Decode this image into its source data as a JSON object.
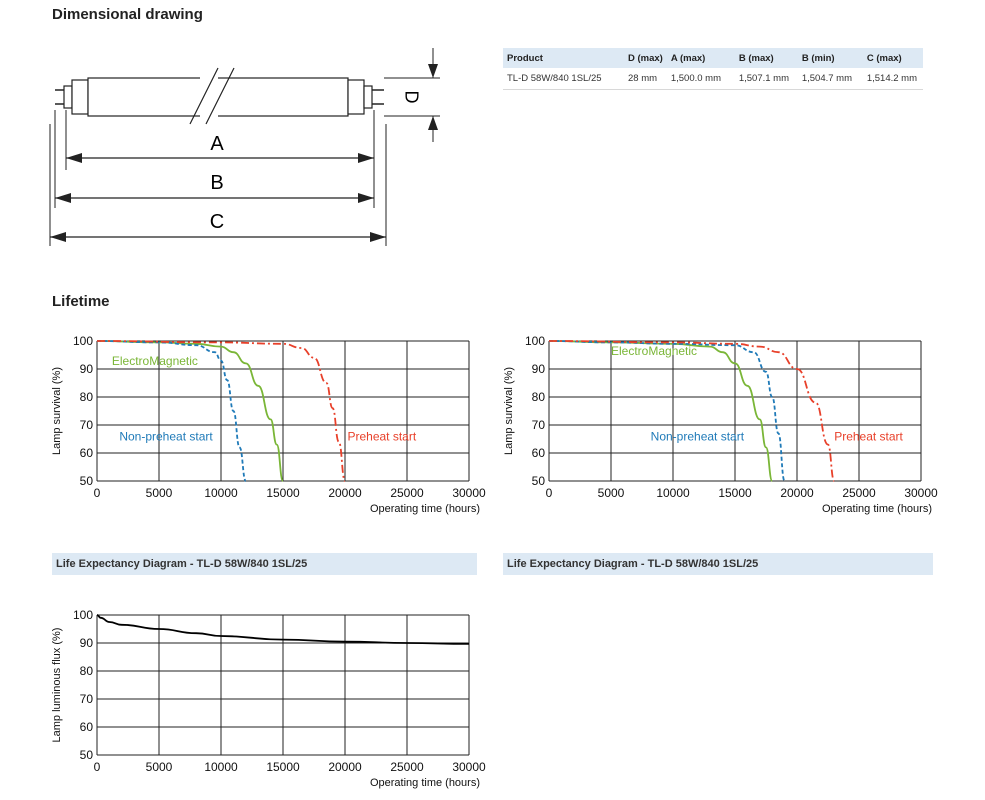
{
  "sections": {
    "dimensional_drawing": "Dimensional drawing",
    "lifetime": "Lifetime"
  },
  "drawing": {
    "label_a": "A",
    "label_b": "B",
    "label_c": "C",
    "label_d": "D"
  },
  "product_table": {
    "headers": [
      "Product",
      "D (max)",
      "A (max)",
      "B (max)",
      "B (min)",
      "C (max)"
    ],
    "rows": [
      [
        "TL-D 58W/840 1SL/25",
        "28 mm",
        "1,500.0 mm",
        "1,507.1 mm",
        "1,504.7 mm",
        "1,514.2 mm"
      ]
    ]
  },
  "captions": {
    "left": "Life Expectancy Diagram - TL-D 58W/840 1SL/25",
    "right": "Life Expectancy Diagram - TL-D 58W/840 1SL/25"
  },
  "colors": {
    "electromagnetic": "#7ab637",
    "non_preheat": "#1f7ab8",
    "preheat": "#e8402a"
  },
  "chart_data": [
    {
      "type": "line",
      "ylabel": "Lamp survival  (%)",
      "xlabel": "Operating time (hours)",
      "xlim": [
        0,
        30000
      ],
      "ylim": [
        50,
        100
      ],
      "xticks": [
        0,
        5000,
        10000,
        15000,
        20000,
        25000,
        30000
      ],
      "yticks": [
        50,
        60,
        70,
        80,
        90,
        100
      ],
      "grid": true,
      "series": [
        {
          "name": "ElectroMagnetic",
          "color": "#7ab637",
          "style": "solid",
          "x": [
            0,
            5000,
            8000,
            10000,
            11000,
            12000,
            13000,
            14000,
            14500,
            15000
          ],
          "y": [
            100,
            99.5,
            99,
            98,
            96,
            92,
            84,
            72,
            63,
            50
          ]
        },
        {
          "name": "Non-preheat start",
          "color": "#1f7ab8",
          "style": "dashed",
          "x": [
            0,
            5000,
            8000,
            9500,
            10000,
            10500,
            11000,
            11500,
            12000
          ],
          "y": [
            100,
            99.5,
            98.5,
            96,
            93,
            86,
            75,
            62,
            50
          ]
        },
        {
          "name": "Preheat start",
          "color": "#e8402a",
          "style": "dashdot",
          "x": [
            0,
            10000,
            15000,
            16500,
            17500,
            18500,
            19000,
            19500,
            20000
          ],
          "y": [
            100,
            99.5,
            99,
            97.5,
            94,
            85,
            76,
            64,
            50
          ]
        }
      ],
      "annotations": [
        "ElectroMagnetic",
        "Non-preheat start",
        "Preheat start"
      ]
    },
    {
      "type": "line",
      "ylabel": "Lamp survival  (%)",
      "xlabel": "Operating time (hours)",
      "xlim": [
        0,
        30000
      ],
      "ylim": [
        50,
        100
      ],
      "xticks": [
        0,
        5000,
        10000,
        15000,
        20000,
        25000,
        30000
      ],
      "yticks": [
        50,
        60,
        70,
        80,
        90,
        100
      ],
      "grid": true,
      "series": [
        {
          "name": "ElectroMagnetic",
          "color": "#7ab637",
          "style": "solid",
          "x": [
            0,
            5000,
            10000,
            13000,
            14000,
            15000,
            16000,
            17000,
            17500,
            18000
          ],
          "y": [
            100,
            99.5,
            99,
            98,
            96,
            92,
            84,
            72,
            62,
            50
          ]
        },
        {
          "name": "Non-preheat start",
          "color": "#1f7ab8",
          "style": "dashed",
          "x": [
            0,
            5000,
            10000,
            15000,
            16500,
            17500,
            18000,
            18500,
            19000
          ],
          "y": [
            100,
            99.5,
            99,
            98.5,
            96,
            89,
            80,
            67,
            50
          ]
        },
        {
          "name": "Preheat start",
          "color": "#e8402a",
          "style": "dashdot",
          "x": [
            0,
            10000,
            15000,
            17000,
            18500,
            20000,
            21500,
            22500,
            23000
          ],
          "y": [
            100,
            99.5,
            99,
            98,
            96,
            90,
            78,
            63,
            50
          ]
        }
      ],
      "annotations": [
        "ElectroMagnetic",
        "Non-preheat start",
        "Preheat start"
      ]
    },
    {
      "type": "line",
      "ylabel": "Lamp luminous flux (%)",
      "xlabel": "Operating time (hours)",
      "xlim": [
        0,
        30000
      ],
      "ylim": [
        50,
        100
      ],
      "xticks": [
        0,
        5000,
        10000,
        15000,
        20000,
        25000,
        30000
      ],
      "yticks": [
        50,
        60,
        70,
        80,
        90,
        100
      ],
      "grid": true,
      "series": [
        {
          "color": "#000000",
          "style": "solid",
          "x": [
            0,
            300,
            1000,
            2000,
            5000,
            8000,
            10000,
            15000,
            20000,
            25000,
            30000
          ],
          "y": [
            100,
            99,
            97.5,
            96.5,
            95,
            93.5,
            92.5,
            91.2,
            90.5,
            90,
            89.7
          ]
        }
      ]
    }
  ]
}
